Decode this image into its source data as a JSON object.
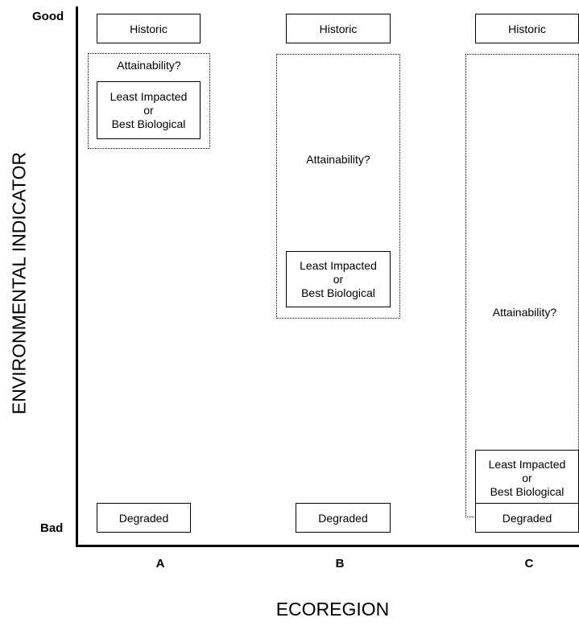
{
  "y_axis": {
    "top_label": "Good",
    "bottom_label": "Bad",
    "title": "ENVIRONMENTAL INDICATOR"
  },
  "x_axis": {
    "title": "ECOREGION",
    "categories": [
      "A",
      "B",
      "C"
    ]
  },
  "boxes": {
    "historic": "Historic",
    "degraded": "Degraded",
    "attainability": "Attainability?",
    "least_impacted": [
      "Least Impacted",
      "or",
      "Best Biological"
    ]
  },
  "columns": [
    {
      "ecoregion": "A",
      "attainability_band": "narrow",
      "reference_level": "high"
    },
    {
      "ecoregion": "B",
      "attainability_band": "medium",
      "reference_level": "middle"
    },
    {
      "ecoregion": "C",
      "attainability_band": "wide",
      "reference_level": "low"
    }
  ]
}
